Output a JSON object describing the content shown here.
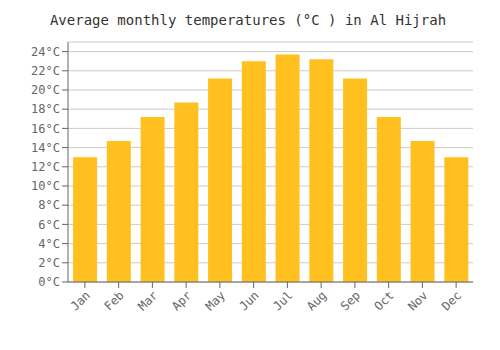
{
  "chart_data": {
    "type": "bar",
    "title": "Average monthly temperatures (°C ) in Al Hijrah",
    "categories": [
      "Jan",
      "Feb",
      "Mar",
      "Apr",
      "May",
      "Jun",
      "Jul",
      "Aug",
      "Sep",
      "Oct",
      "Nov",
      "Dec"
    ],
    "values": [
      13,
      14.7,
      17.2,
      18.7,
      21.2,
      23,
      23.7,
      23.2,
      21.2,
      17.2,
      14.7,
      13
    ],
    "color": "#FFC020",
    "ylim": [
      0,
      25
    ],
    "yticks": [
      {
        "value": 0,
        "label": "0°C"
      },
      {
        "value": 2,
        "label": "2°C"
      },
      {
        "value": 4,
        "label": "4°C"
      },
      {
        "value": 6,
        "label": "6°C"
      },
      {
        "value": 8,
        "label": "8°C"
      },
      {
        "value": 10,
        "label": "10°C"
      },
      {
        "value": 12,
        "label": "12°C"
      },
      {
        "value": 14,
        "label": "14°C"
      },
      {
        "value": 16,
        "label": "16°C"
      },
      {
        "value": 18,
        "label": "18°C"
      },
      {
        "value": 20,
        "label": "20°C"
      },
      {
        "value": 22,
        "label": "22°C"
      },
      {
        "value": 24,
        "label": "24°C"
      }
    ],
    "grid": true
  }
}
